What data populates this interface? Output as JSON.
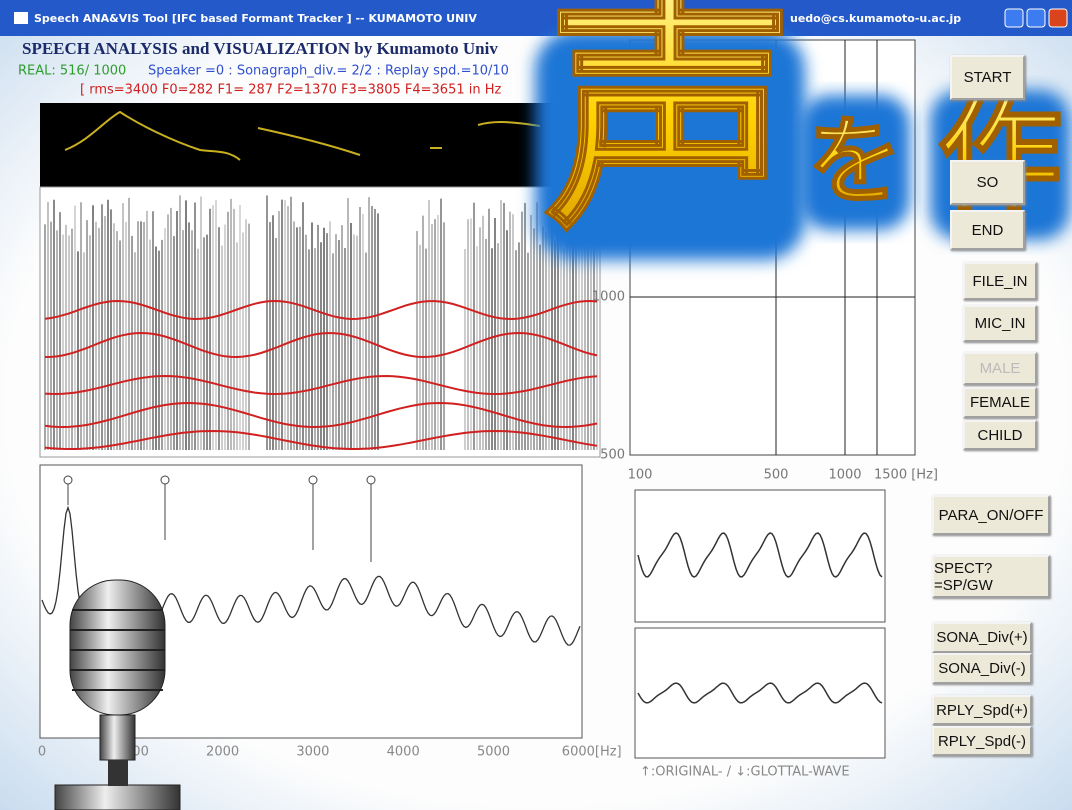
{
  "window": {
    "title": "Speech ANA&VIS Tool [IFC based Formant Tracker ] -- KUMAMOTO UNIV",
    "email": "uedo@cs.kumamoto-u.ac.jp"
  },
  "header": {
    "title": "SPEECH ANALYSIS and VISUALIZATION by Kumamoto Univ",
    "status_real": "REAL:  516/ 1000",
    "status_info": "Speaker =0 : Sonagraph_div.= 2/2 : Replay spd.=10/10",
    "params": "[ rms=3400  F0=282  F1= 287  F2=1370  F3=3805  F4=3651 in Hz"
  },
  "formant_chart": {
    "y_labels": [
      "1000",
      "500"
    ],
    "x_labels": [
      "100",
      "500",
      "1000",
      "1500 [Hz]"
    ]
  },
  "spectrum": {
    "x_labels": [
      "0",
      "1000",
      "2000",
      "3000",
      "4000",
      "5000",
      "6000[Hz]"
    ]
  },
  "wave_caption": "↑:ORIGINAL- / ↓:GLOTTAL-WAVE",
  "buttons": [
    "START",
    "SO",
    "END",
    "FILE_IN",
    "MIC_IN",
    "MALE",
    "FEMALE",
    "CHILD",
    "PARA_ON/OFF",
    "SPECT?=SP/GW",
    "SONA_Div(+)",
    "SONA_Div(-)",
    "RPLY_Spd(+)",
    "RPLY_Spd(-)"
  ],
  "overlay": [
    "声",
    "を",
    "作"
  ]
}
